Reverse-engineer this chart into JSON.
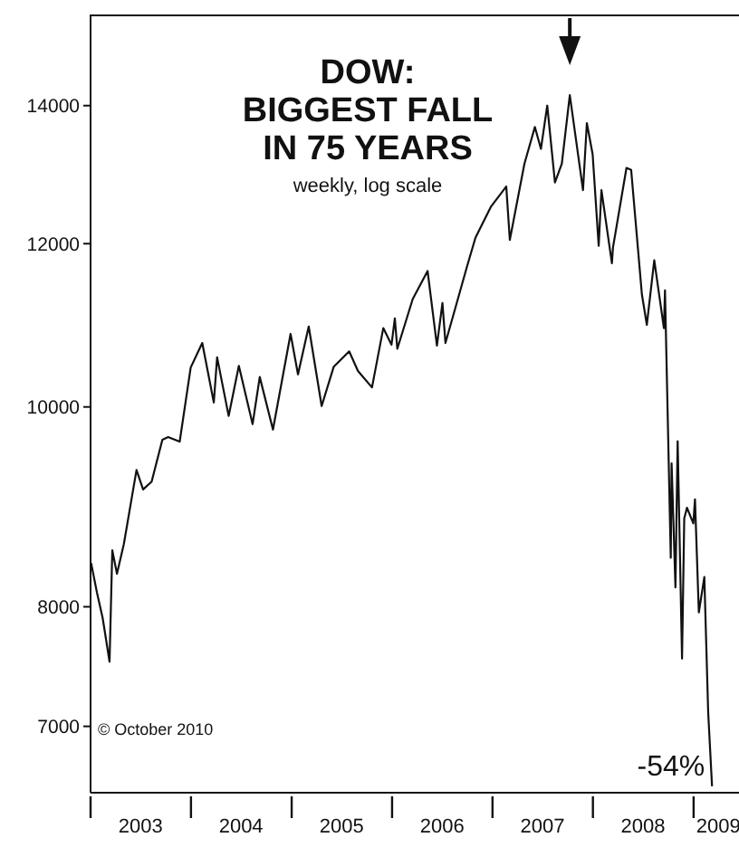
{
  "chart_data": {
    "type": "line",
    "title": "DOW:\nBIGGEST FALL\nIN 75 YEARS",
    "subtitle": "weekly, log scale",
    "log": true,
    "marker": "none",
    "annotations": [
      "© October 2010",
      {
        "text": "-54%",
        "x": "2009-03-09",
        "y": 6547
      }
    ],
    "xlim": [
      "2003-01-01",
      "2009-06-15"
    ],
    "xticks": [
      {
        "value": "2003-01-01",
        "label": null
      },
      {
        "value": "2003-07-02",
        "label": "2003"
      },
      {
        "value": "2004-01-01",
        "label": null
      },
      {
        "value": "2004-07-01",
        "label": "2004"
      },
      {
        "value": "2005-01-01",
        "label": null
      },
      {
        "value": "2005-07-02",
        "label": "2005"
      },
      {
        "value": "2006-01-01",
        "label": null
      },
      {
        "value": "2006-07-02",
        "label": "2006"
      },
      {
        "value": "2007-01-01",
        "label": null
      },
      {
        "value": "2007-07-02",
        "label": "2007"
      },
      {
        "value": "2008-01-01",
        "label": null
      },
      {
        "value": "2008-07-01",
        "label": "2008"
      },
      {
        "value": "2009-01-01",
        "label": null
      },
      {
        "value": "2009-04-01",
        "label": "2009"
      }
    ],
    "ylim": [
      6500,
      15500
    ],
    "yticks": [
      7000,
      8000,
      10000,
      12000,
      14000
    ],
    "series": [
      {
        "color": "#111111",
        "x": [
          "2003-01-03",
          "2003-01-24",
          "2003-02-14",
          "2003-03-11",
          "2003-03-21",
          "2003-04-07",
          "2003-05-02",
          "2003-06-17",
          "2003-07-11",
          "2003-08-11",
          "2003-09-19",
          "2003-10-10",
          "2003-11-21",
          "2003-12-31",
          "2004-02-11",
          "2004-03-24",
          "2004-04-05",
          "2004-05-17",
          "2004-06-23",
          "2004-08-12",
          "2004-09-07",
          "2004-10-25",
          "2004-12-28",
          "2005-01-24",
          "2005-03-04",
          "2005-04-20",
          "2005-06-03",
          "2005-07-29",
          "2005-08-30",
          "2005-10-20",
          "2005-11-30",
          "2005-12-30",
          "2006-01-11",
          "2006-01-20",
          "2006-03-17",
          "2006-05-10",
          "2006-06-13",
          "2006-07-03",
          "2006-07-14",
          "2006-09-29",
          "2006-10-31",
          "2006-12-27",
          "2007-02-20",
          "2007-03-05",
          "2007-04-27",
          "2007-06-04",
          "2007-06-26",
          "2007-07-19",
          "2007-08-16",
          "2007-09-10",
          "2007-10-09",
          "2007-11-26",
          "2007-12-10",
          "2007-12-31",
          "2008-01-22",
          "2008-02-01",
          "2008-03-10",
          "2008-03-14",
          "2008-05-02",
          "2008-05-19",
          "2008-06-27",
          "2008-07-15",
          "2008-08-11",
          "2008-09-15",
          "2008-09-19",
          "2008-10-10",
          "2008-10-13",
          "2008-10-27",
          "2008-11-04",
          "2008-11-20",
          "2008-11-28",
          "2008-12-08",
          "2008-12-31",
          "2009-01-06",
          "2009-01-20",
          "2009-02-09",
          "2009-02-23",
          "2009-03-09"
        ],
        "values": [
          8400,
          8130,
          7900,
          7524,
          8520,
          8300,
          8580,
          9320,
          9120,
          9200,
          9640,
          9670,
          9620,
          10450,
          10740,
          10050,
          10570,
          9900,
          10470,
          9810,
          10340,
          9750,
          10850,
          10370,
          10940,
          10010,
          10460,
          10640,
          10410,
          10220,
          10920,
          10720,
          11040,
          10670,
          11280,
          11640,
          10710,
          11230,
          10740,
          11680,
          12080,
          12510,
          12790,
          12050,
          13120,
          13670,
          13340,
          14000,
          12850,
          13120,
          14164,
          12740,
          13730,
          13260,
          11970,
          12740,
          11740,
          11950,
          13060,
          13030,
          11340,
          10960,
          11780,
          10920,
          11390,
          8450,
          9390,
          8175,
          9625,
          7550,
          8830,
          8935,
          8780,
          9020,
          7950,
          8270,
          7110,
          6547
        ]
      }
    ]
  }
}
